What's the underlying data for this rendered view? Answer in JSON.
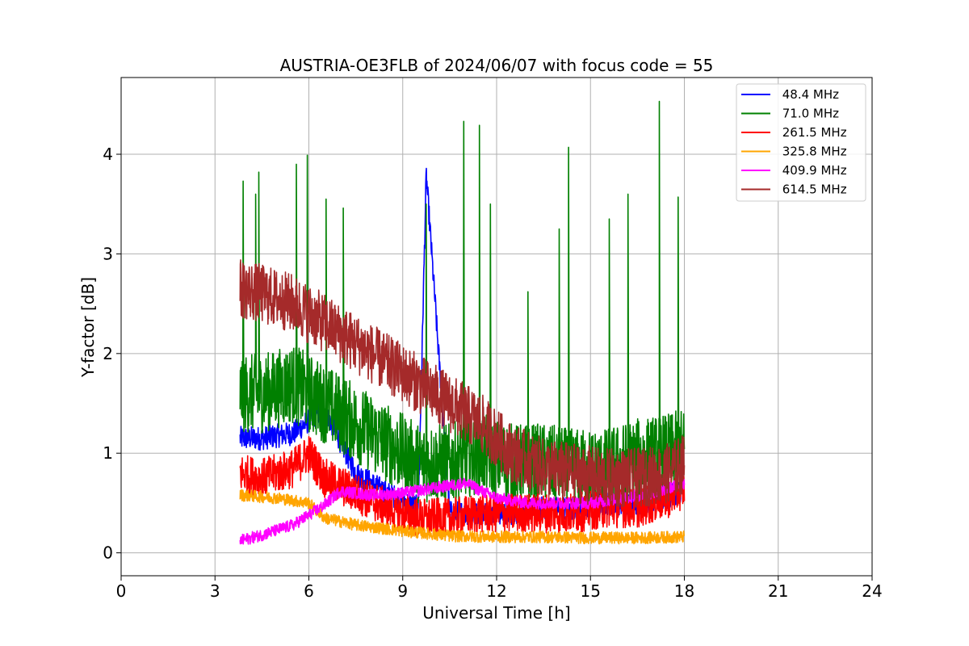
{
  "chart_data": {
    "type": "line",
    "title": "AUSTRIA-OE3FLB of 2024/06/07 with focus code = 55",
    "xlabel": "Universal Time [h]",
    "ylabel": "Y-factor [dB]",
    "xlim": [
      0,
      24
    ],
    "ylim": [
      -0.23,
      4.77
    ],
    "xticks": [
      0,
      3,
      6,
      9,
      12,
      15,
      18,
      21,
      24
    ],
    "yticks": [
      0,
      1,
      2,
      3,
      4
    ],
    "grid": true,
    "legend_position": "top-right",
    "series": [
      {
        "name": " 48.4 MHz",
        "color": "#0000ff",
        "x": [
          3.8,
          4.5,
          5.5,
          6.5,
          7.5,
          8.5,
          9.5,
          9.75,
          10.5,
          11.5,
          12.5,
          13.5,
          14.5,
          15.5,
          16.5,
          17.5,
          18.0
        ],
        "y": [
          1.15,
          1.15,
          1.2,
          1.45,
          0.8,
          0.6,
          0.45,
          3.8,
          0.4,
          0.4,
          0.4,
          0.45,
          0.45,
          0.5,
          0.5,
          0.55,
          0.65
        ],
        "noise": 0.12
      },
      {
        "name": " 71.0 MHz",
        "color": "#008000",
        "x": [
          3.8,
          4.5,
          5.5,
          6.5,
          7.5,
          8.5,
          9.5,
          10.5,
          11.5,
          12.5,
          13.5,
          14.5,
          15.5,
          16.5,
          17.5,
          18.0
        ],
        "y": [
          1.6,
          1.6,
          1.7,
          1.5,
          1.3,
          1.1,
          0.9,
          0.9,
          1.0,
          0.9,
          0.9,
          0.85,
          0.85,
          0.95,
          1.0,
          1.05
        ],
        "noise": 0.4,
        "spikes": [
          [
            3.9,
            3.73
          ],
          [
            4.3,
            3.6
          ],
          [
            4.4,
            3.82
          ],
          [
            5.6,
            3.9
          ],
          [
            5.95,
            3.99
          ],
          [
            6.55,
            3.55
          ],
          [
            7.1,
            3.46
          ],
          [
            9.75,
            3.5
          ],
          [
            10.95,
            4.33
          ],
          [
            11.45,
            4.29
          ],
          [
            11.8,
            3.5
          ],
          [
            13.0,
            2.62
          ],
          [
            14.3,
            4.07
          ],
          [
            14.0,
            3.25
          ],
          [
            15.6,
            3.35
          ],
          [
            16.2,
            3.6
          ],
          [
            17.2,
            4.53
          ],
          [
            17.8,
            3.57
          ]
        ]
      },
      {
        "name": " 261.5 MHz",
        "color": "#ff0000",
        "x": [
          3.8,
          4.5,
          5.5,
          6.0,
          6.5,
          7.5,
          8.5,
          9.5,
          10.5,
          11.5,
          12.5,
          13.5,
          14.5,
          15.5,
          16.5,
          17.5,
          18.0
        ],
        "y": [
          0.8,
          0.75,
          0.85,
          1.0,
          0.75,
          0.6,
          0.45,
          0.35,
          0.35,
          0.4,
          0.4,
          0.4,
          0.4,
          0.45,
          0.45,
          0.55,
          0.65
        ],
        "noise": 0.2
      },
      {
        "name": " 325.8 MHz",
        "color": "#ffa500",
        "x": [
          3.8,
          5.0,
          6.0,
          6.5,
          7.5,
          9.0,
          10.5,
          12.0,
          13.5,
          15.0,
          16.5,
          18.0
        ],
        "y": [
          0.58,
          0.55,
          0.5,
          0.35,
          0.28,
          0.22,
          0.17,
          0.16,
          0.16,
          0.15,
          0.15,
          0.16
        ],
        "noise": 0.06
      },
      {
        "name": " 409.9 MHz",
        "color": "#ff00ff",
        "x": [
          3.8,
          4.5,
          5.5,
          6.5,
          7.0,
          8.0,
          9.0,
          10.0,
          11.0,
          12.0,
          13.0,
          14.0,
          15.0,
          16.0,
          17.0,
          18.0
        ],
        "y": [
          0.12,
          0.18,
          0.28,
          0.48,
          0.62,
          0.58,
          0.6,
          0.65,
          0.7,
          0.55,
          0.5,
          0.5,
          0.5,
          0.55,
          0.6,
          0.7
        ],
        "noise": 0.06
      },
      {
        "name": " 614.5 MHz",
        "color": "#a52a2a",
        "x": [
          3.8,
          4.5,
          5.5,
          6.5,
          7.5,
          8.5,
          9.5,
          10.5,
          11.5,
          12.5,
          13.5,
          14.5,
          15.5,
          16.5,
          17.5,
          18.0
        ],
        "y": [
          2.65,
          2.6,
          2.5,
          2.3,
          2.1,
          1.9,
          1.7,
          1.5,
          1.3,
          1.0,
          0.85,
          0.8,
          0.75,
          0.75,
          0.8,
          0.9
        ],
        "noise": 0.3
      }
    ]
  }
}
